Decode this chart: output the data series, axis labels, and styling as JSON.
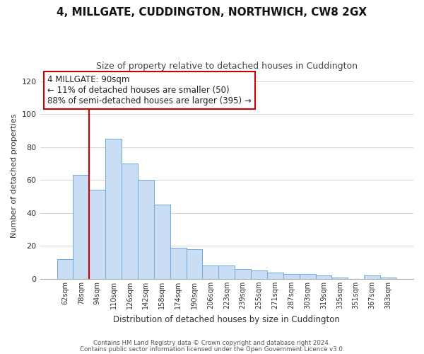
{
  "title": "4, MILLGATE, CUDDINGTON, NORTHWICH, CW8 2GX",
  "subtitle": "Size of property relative to detached houses in Cuddington",
  "xlabel": "Distribution of detached houses by size in Cuddington",
  "ylabel": "Number of detached properties",
  "bar_labels": [
    "62sqm",
    "78sqm",
    "94sqm",
    "110sqm",
    "126sqm",
    "142sqm",
    "158sqm",
    "174sqm",
    "190sqm",
    "206sqm",
    "223sqm",
    "239sqm",
    "255sqm",
    "271sqm",
    "287sqm",
    "303sqm",
    "319sqm",
    "335sqm",
    "351sqm",
    "367sqm",
    "383sqm"
  ],
  "bar_values": [
    12,
    63,
    54,
    85,
    70,
    60,
    45,
    19,
    18,
    8,
    8,
    6,
    5,
    4,
    3,
    3,
    2,
    1,
    0,
    2,
    1
  ],
  "bar_color": "#c9ddf5",
  "bar_edge_color": "#6fa8dc",
  "highlight_color": "#cc0000",
  "ylim": [
    0,
    125
  ],
  "yticks": [
    0,
    20,
    40,
    60,
    80,
    100,
    120
  ],
  "annotation_title": "4 MILLGATE: 90sqm",
  "annotation_line1": "← 11% of detached houses are smaller (50)",
  "annotation_line2": "88% of semi-detached houses are larger (395) →",
  "annotation_box_color": "#ffffff",
  "annotation_box_edge": "#cc0000",
  "footer1": "Contains HM Land Registry data © Crown copyright and database right 2024.",
  "footer2": "Contains public sector information licensed under the Open Government Licence v3.0.",
  "background_color": "#ffffff",
  "grid_color": "#d0d0d0"
}
